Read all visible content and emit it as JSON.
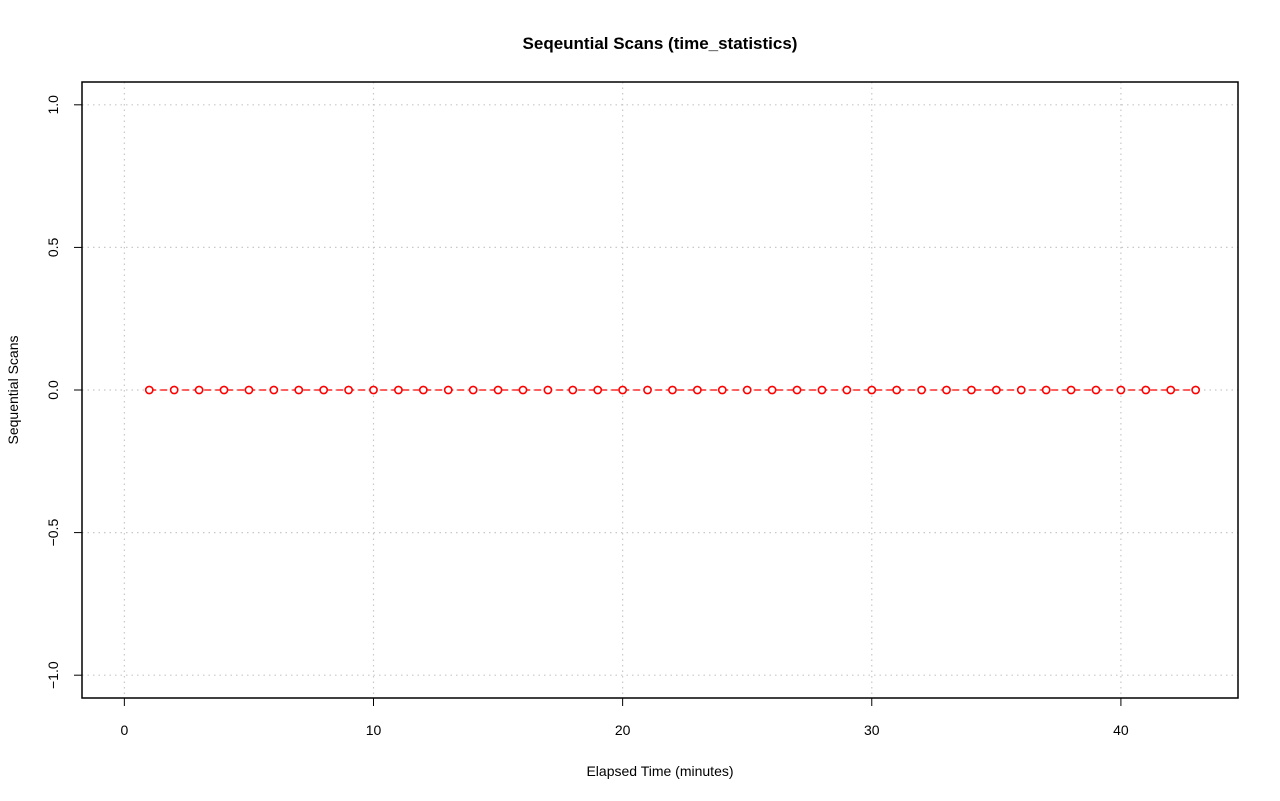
{
  "chart_data": {
    "type": "line",
    "title": "Seqeuntial Scans (time_statistics)",
    "xlabel": "Elapsed Time (minutes)",
    "ylabel": "Sequential Scans",
    "xlim": [
      -1.7,
      44.7
    ],
    "ylim": [
      -1.08,
      1.08
    ],
    "x_ticks": [
      0,
      10,
      20,
      30,
      40
    ],
    "y_ticks": [
      -1.0,
      -0.5,
      0.0,
      0.5,
      1.0
    ],
    "x_tick_labels": [
      "0",
      "10",
      "20",
      "30",
      "40"
    ],
    "y_tick_labels": [
      "−1.0",
      "−0.5",
      "0.0",
      "0.5",
      "1.0"
    ],
    "grid": true,
    "series": [
      {
        "color": "#ff0000",
        "line_style": "dashed",
        "marker": "open-circle",
        "x": [
          1,
          2,
          3,
          4,
          5,
          6,
          7,
          8,
          9,
          10,
          11,
          12,
          13,
          14,
          15,
          16,
          17,
          18,
          19,
          20,
          21,
          22,
          23,
          24,
          25,
          26,
          27,
          28,
          29,
          30,
          31,
          32,
          33,
          34,
          35,
          36,
          37,
          38,
          39,
          40,
          41,
          42,
          43
        ],
        "y": [
          0,
          0,
          0,
          0,
          0,
          0,
          0,
          0,
          0,
          0,
          0,
          0,
          0,
          0,
          0,
          0,
          0,
          0,
          0,
          0,
          0,
          0,
          0,
          0,
          0,
          0,
          0,
          0,
          0,
          0,
          0,
          0,
          0,
          0,
          0,
          0,
          0,
          0,
          0,
          0,
          0,
          0,
          0
        ]
      }
    ]
  }
}
